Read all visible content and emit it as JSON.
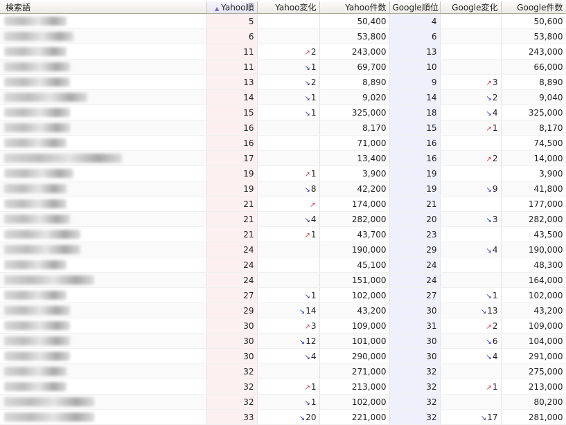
{
  "headers": {
    "keyword": "検索語",
    "yahoo_rank": "Yahoo順",
    "yahoo_change": "Yahoo変化",
    "yahoo_count": "Yahoo件数",
    "google_rank": "Google順位",
    "google_change": "Google変化",
    "google_count": "Google件数"
  },
  "sort_icon": "sort-ascending-icon",
  "colors": {
    "up": "#e03030",
    "down": "#1a35c8",
    "yahoo_col": "#fdf0f0",
    "google_col": "#f0f0fc"
  },
  "rows": [
    {
      "yr": "5",
      "yc": "",
      "ycn": "",
      "ycount": "50,400",
      "gr": "4",
      "gc": "",
      "gcn": "",
      "gcount": "50,600"
    },
    {
      "yr": "6",
      "yc": "",
      "ycn": "",
      "ycount": "53,800",
      "gr": "6",
      "gc": "",
      "gcn": "",
      "gcount": "53,800"
    },
    {
      "yr": "11",
      "yc": "up",
      "ycn": "2",
      "ycount": "243,000",
      "gr": "13",
      "gc": "",
      "gcn": "",
      "gcount": "243,000"
    },
    {
      "yr": "11",
      "yc": "down",
      "ycn": "1",
      "ycount": "69,700",
      "gr": "10",
      "gc": "",
      "gcn": "",
      "gcount": "66,000"
    },
    {
      "yr": "13",
      "yc": "down",
      "ycn": "2",
      "ycount": "8,890",
      "gr": "9",
      "gc": "up",
      "gcn": "3",
      "gcount": "8,890"
    },
    {
      "yr": "14",
      "yc": "down",
      "ycn": "1",
      "ycount": "9,020",
      "gr": "14",
      "gc": "down",
      "gcn": "2",
      "gcount": "9,040"
    },
    {
      "yr": "15",
      "yc": "down",
      "ycn": "1",
      "ycount": "325,000",
      "gr": "18",
      "gc": "down",
      "gcn": "4",
      "gcount": "325,000"
    },
    {
      "yr": "16",
      "yc": "",
      "ycn": "",
      "ycount": "8,170",
      "gr": "15",
      "gc": "up",
      "gcn": "1",
      "gcount": "8,170"
    },
    {
      "yr": "16",
      "yc": "",
      "ycn": "",
      "ycount": "71,000",
      "gr": "16",
      "gc": "",
      "gcn": "",
      "gcount": "74,500"
    },
    {
      "yr": "17",
      "yc": "",
      "ycn": "",
      "ycount": "13,400",
      "gr": "16",
      "gc": "up",
      "gcn": "2",
      "gcount": "14,000"
    },
    {
      "yr": "19",
      "yc": "up",
      "ycn": "1",
      "ycount": "3,900",
      "gr": "19",
      "gc": "",
      "gcn": "",
      "gcount": "3,900"
    },
    {
      "yr": "19",
      "yc": "down",
      "ycn": "8",
      "ycount": "42,200",
      "gr": "19",
      "gc": "down",
      "gcn": "9",
      "gcount": "41,800"
    },
    {
      "yr": "21",
      "yc": "up",
      "ycn": "",
      "ycount": "174,000",
      "gr": "21",
      "gc": "",
      "gcn": "",
      "gcount": "177,000"
    },
    {
      "yr": "21",
      "yc": "down",
      "ycn": "4",
      "ycount": "282,000",
      "gr": "20",
      "gc": "down",
      "gcn": "3",
      "gcount": "282,000"
    },
    {
      "yr": "21",
      "yc": "up",
      "ycn": "1",
      "ycount": "43,700",
      "gr": "23",
      "gc": "",
      "gcn": "",
      "gcount": "43,500"
    },
    {
      "yr": "24",
      "yc": "",
      "ycn": "",
      "ycount": "190,000",
      "gr": "29",
      "gc": "down",
      "gcn": "4",
      "gcount": "190,000"
    },
    {
      "yr": "24",
      "yc": "",
      "ycn": "",
      "ycount": "45,100",
      "gr": "24",
      "gc": "",
      "gcn": "",
      "gcount": "48,300"
    },
    {
      "yr": "24",
      "yc": "",
      "ycn": "",
      "ycount": "151,000",
      "gr": "24",
      "gc": "",
      "gcn": "",
      "gcount": "164,000"
    },
    {
      "yr": "27",
      "yc": "down",
      "ycn": "1",
      "ycount": "102,000",
      "gr": "27",
      "gc": "down",
      "gcn": "1",
      "gcount": "102,000"
    },
    {
      "yr": "29",
      "yc": "down",
      "ycn": "14",
      "ycount": "43,200",
      "gr": "30",
      "gc": "down",
      "gcn": "13",
      "gcount": "43,200"
    },
    {
      "yr": "30",
      "yc": "up",
      "ycn": "3",
      "ycount": "109,000",
      "gr": "31",
      "gc": "up",
      "gcn": "2",
      "gcount": "109,000"
    },
    {
      "yr": "30",
      "yc": "down",
      "ycn": "12",
      "ycount": "101,000",
      "gr": "30",
      "gc": "down",
      "gcn": "6",
      "gcount": "104,000"
    },
    {
      "yr": "30",
      "yc": "down",
      "ycn": "4",
      "ycount": "290,000",
      "gr": "30",
      "gc": "down",
      "gcn": "4",
      "gcount": "291,000"
    },
    {
      "yr": "32",
      "yc": "",
      "ycn": "",
      "ycount": "271,000",
      "gr": "32",
      "gc": "",
      "gcn": "",
      "gcount": "275,000"
    },
    {
      "yr": "32",
      "yc": "up",
      "ycn": "1",
      "ycount": "213,000",
      "gr": "32",
      "gc": "up",
      "gcn": "1",
      "gcount": "213,000"
    },
    {
      "yr": "32",
      "yc": "down",
      "ycn": "1",
      "ycount": "102,000",
      "gr": "32",
      "gc": "",
      "gcn": "",
      "gcount": "80,200"
    },
    {
      "yr": "33",
      "yc": "down",
      "ycn": "20",
      "ycount": "221,000",
      "gr": "32",
      "gc": "down",
      "gcn": "17",
      "gcount": "281,000"
    }
  ]
}
